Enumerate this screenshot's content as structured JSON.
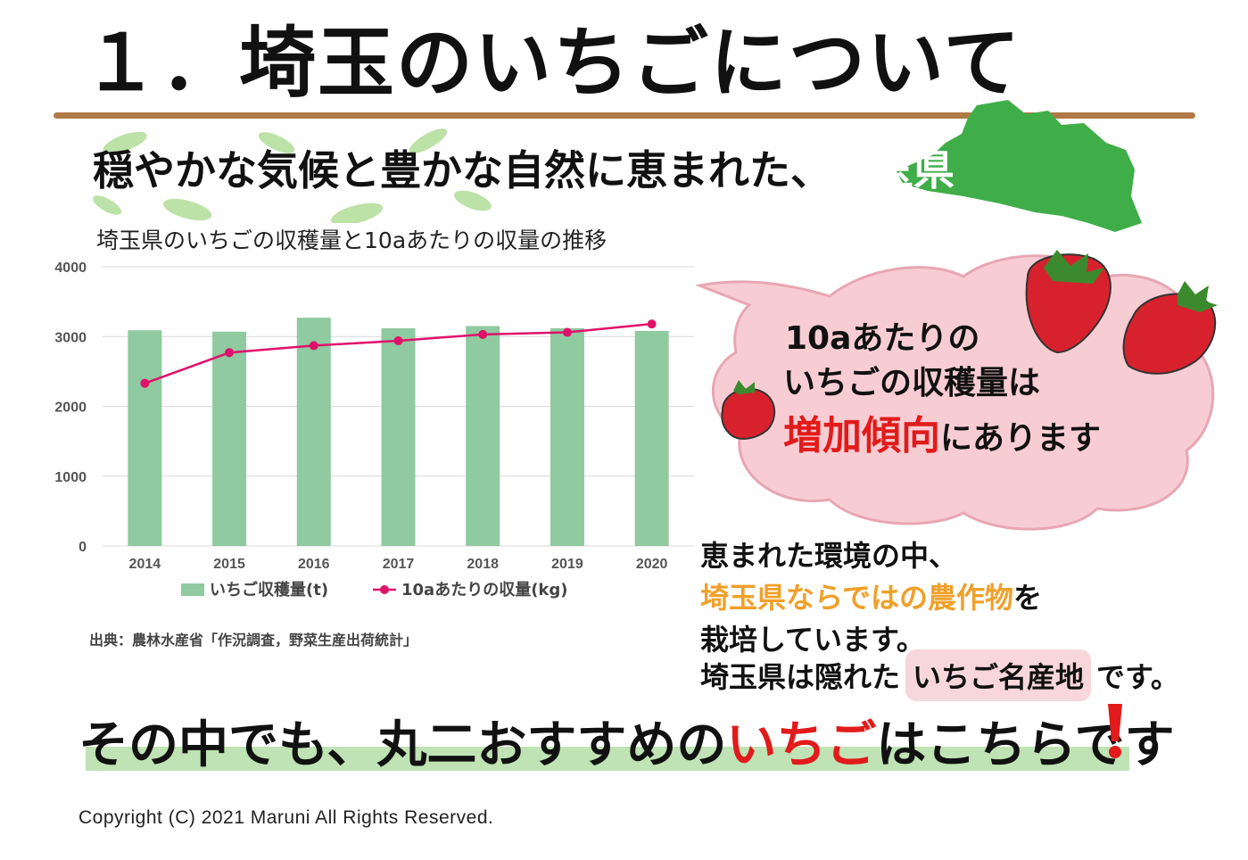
{
  "title": "１．埼玉のいちごについて",
  "subtitle": {
    "text": "穏やかな気候と豊かな自然に恵まれた、",
    "pref": "埼玉県"
  },
  "chart_title": "埼玉県のいちごの収穫量と10aあたりの収量の推移",
  "chart_data": {
    "type": "bar",
    "categories": [
      "2014",
      "2015",
      "2016",
      "2017",
      "2018",
      "2019",
      "2020"
    ],
    "series": [
      {
        "name": "いちご収穫量(t)",
        "type": "bar",
        "values": [
          3090,
          3070,
          3270,
          3120,
          3150,
          3120,
          3080
        ]
      },
      {
        "name": "10aあたりの収量(kg)",
        "type": "line",
        "values": [
          2330,
          2770,
          2870,
          2940,
          3030,
          3060,
          3180
        ]
      }
    ],
    "y_ticks": [
      "0",
      "1000",
      "2000",
      "3000",
      "4000"
    ],
    "ylim": [
      0,
      4000
    ],
    "grid": true,
    "legend": "bottom",
    "colors": {
      "bar": "#8fcaa0",
      "line": "#e0116b"
    }
  },
  "source": "出典：農林水産省「作況調査，野菜生産出荷統計」",
  "bubble": {
    "line1": "10aあたりの",
    "line2": "いちごの収穫量は",
    "line3_emph": "増加傾向",
    "line3_rest": "にあります"
  },
  "body": {
    "line1": "恵まれた環境の中、",
    "line2_highlight": "埼玉県ならではの農作物",
    "line2_rest": "を",
    "line3": "栽培しています。",
    "line4_pre": "埼玉県は隠れた",
    "line4_tag": "いちご名産地",
    "line4_post": "です。"
  },
  "banner": {
    "pre": "その中でも、丸二おすすめの",
    "highlight": "いちご",
    "post": "はこちらです"
  },
  "copyright": "Copyright (C) 2021 Maruni All Rights Reserved.",
  "colors": {
    "accent_red": "#e11b1b",
    "accent_orange": "#f0a02a",
    "map_green": "#3fae49",
    "bubble_pink": "#f7cdd3",
    "rule_brown": "#b07a47"
  }
}
